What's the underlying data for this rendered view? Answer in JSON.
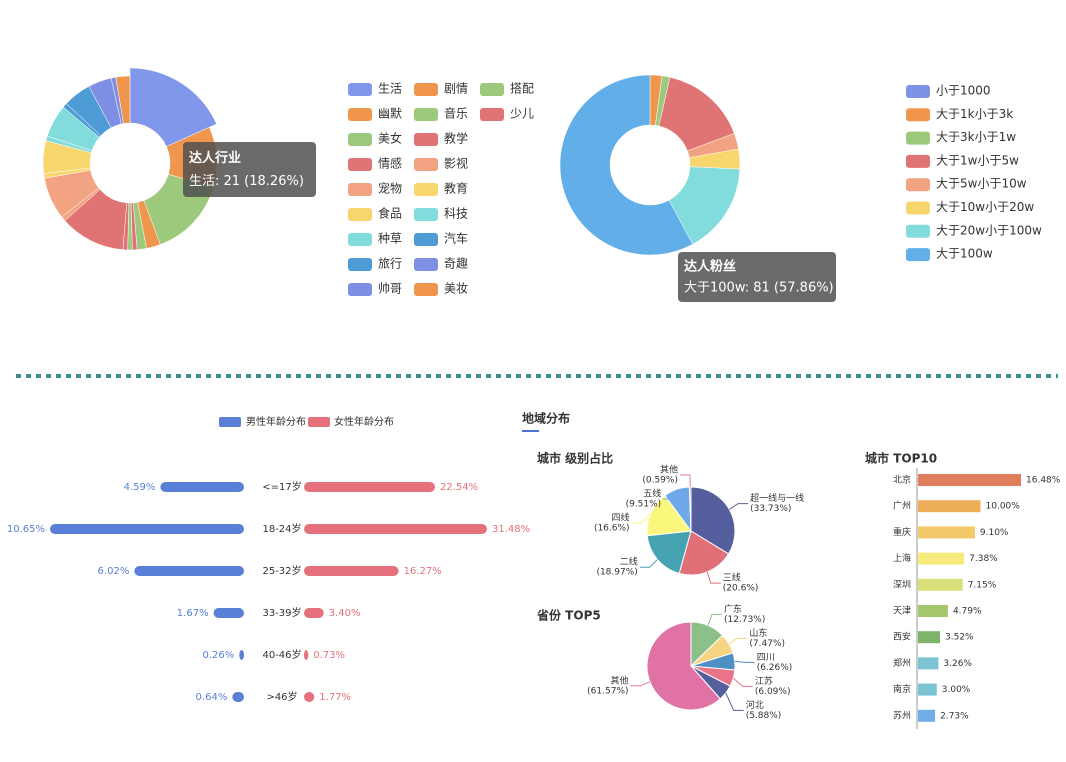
{
  "region_header": "地域分布",
  "chart_data": [
    {
      "type": "donut",
      "tooltip": {
        "title": "达人行业",
        "text": "生活: 21 (18.26%)"
      },
      "categories": [
        "生活",
        "剧情",
        "搭配",
        "幽默",
        "音乐",
        "少儿",
        "美女",
        "教学",
        "情感",
        "影视",
        "宠物",
        "教育",
        "食品",
        "科技",
        "种草",
        "汽车",
        "旅行",
        "奇趣",
        "帅哥",
        "美妆"
      ],
      "values": [
        21,
        13,
        17,
        3,
        2,
        1,
        1,
        1,
        14,
        1,
        9,
        1,
        7,
        1,
        7,
        1,
        6,
        5,
        1,
        3
      ],
      "colors": [
        "#8197ec",
        "#f0954c",
        "#9cc97c",
        "#f0954c",
        "#9cc97c",
        "#e07373",
        "#9cc97c",
        "#e07373",
        "#e07373",
        "#f2a382",
        "#f2a382",
        "#f8d66e",
        "#f8d66e",
        "#82dcdc",
        "#82dcdc",
        "#4f9bd6",
        "#4f9bd6",
        "#7f8fe3",
        "#7f8fe3",
        "#f0954c"
      ]
    },
    {
      "type": "donut",
      "tooltip": {
        "title": "达人粉丝",
        "text": "大于100w: 81 (57.86%)"
      },
      "categories": [
        "小于1000",
        "大于1k小于3k",
        "大于3k小于1w",
        "大于1w小于5w",
        "大于5w小于10w",
        "大于10w小于20w",
        "大于20w小于100w",
        "大于100w"
      ],
      "values": [
        0,
        3,
        2,
        22,
        4,
        5,
        23,
        81
      ],
      "colors": [
        "#7f93e6",
        "#f0954c",
        "#9cc97c",
        "#e07373",
        "#f2a382",
        "#f8d66e",
        "#82dcdc",
        "#62aee8"
      ]
    },
    {
      "type": "butterfly",
      "categories": [
        "<=17岁",
        "18-24岁",
        "25-32岁",
        "33-39岁",
        "40-46岁",
        ">46岁"
      ],
      "series": [
        {
          "name": "男性年龄分布",
          "color": "#5a7fd6",
          "values": [
            4.59,
            10.65,
            6.02,
            1.67,
            0.26,
            0.64
          ],
          "value_labels": [
            "4.59%",
            "10.65%",
            "6.02%",
            "1.67%",
            "0.26%",
            "0.64%"
          ]
        },
        {
          "name": "女性年龄分布",
          "color": "#e5717c",
          "values": [
            22.54,
            31.48,
            16.27,
            3.4,
            0.73,
            1.77
          ],
          "value_labels": [
            "22.54%",
            "31.48%",
            "16.27%",
            "3.40%",
            "0.73%",
            "1.77%"
          ]
        }
      ]
    },
    {
      "type": "pie",
      "title": "城市 级别占比",
      "categories": [
        "超一线与一线",
        "三线",
        "二线",
        "四线",
        "五线",
        "其他"
      ],
      "values": [
        33.73,
        20.6,
        18.97,
        16.6,
        9.51,
        0.59
      ],
      "value_labels": [
        "(33.73%)",
        "(20.6%)",
        "(18.97%)",
        "(16.6%)",
        "(9.51%)",
        "(0.59%)"
      ],
      "colors": [
        "#565f9e",
        "#e06f77",
        "#45a2b0",
        "#fbf77c",
        "#6fa8e8",
        "#e47ba0"
      ]
    },
    {
      "type": "pie",
      "title": "省份 TOP5",
      "categories": [
        "广东",
        "山东",
        "四川",
        "江苏",
        "河北",
        "其他"
      ],
      "values": [
        12.73,
        7.47,
        6.26,
        6.09,
        5.88,
        61.57
      ],
      "value_labels": [
        "(12.73%)",
        "(7.47%)",
        "(6.26%)",
        "(6.09%)",
        "(5.88%)",
        "(61.57%)"
      ],
      "colors": [
        "#8bc08a",
        "#f7d483",
        "#4e8fc6",
        "#e9748a",
        "#565f9e",
        "#e072a6"
      ]
    },
    {
      "type": "bar",
      "orientation": "horizontal",
      "title": "城市 TOP10",
      "categories": [
        "北京",
        "广州",
        "重庆",
        "上海",
        "深圳",
        "天津",
        "西安",
        "郑州",
        "南京",
        "苏州"
      ],
      "values": [
        16.48,
        10.0,
        9.1,
        7.38,
        7.15,
        4.79,
        3.52,
        3.26,
        3.0,
        2.73
      ],
      "value_labels": [
        "16.48%",
        "10.00%",
        "9.10%",
        "7.38%",
        "7.15%",
        "4.79%",
        "3.52%",
        "3.26%",
        "3.00%",
        "2.73%"
      ],
      "colors": [
        "#e07f5e",
        "#eeae5a",
        "#f4c96a",
        "#f7ea7c",
        "#d9e07a",
        "#a6c86d",
        "#7db36b",
        "#7cc4d2",
        "#7bc4d3",
        "#72aee6"
      ]
    }
  ]
}
